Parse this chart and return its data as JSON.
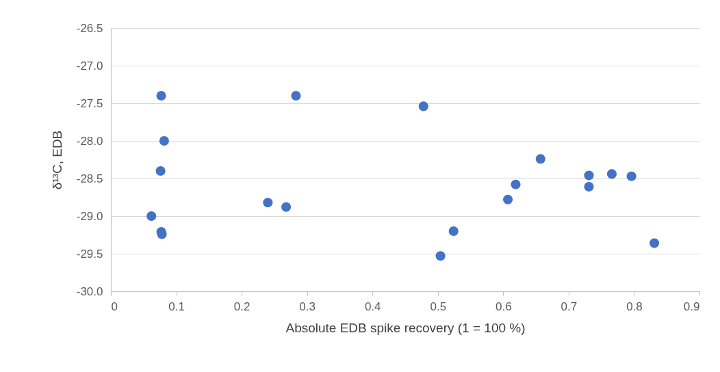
{
  "chart_data": {
    "type": "scatter",
    "xlabel": "Absolute EDB spike recovery (1 = 100 %)",
    "ylabel": "δ¹³C, EDB",
    "x": [
      0.077,
      0.283,
      0.478,
      0.0815,
      0.076,
      0.062,
      0.077,
      0.078,
      0.24,
      0.268,
      0.657,
      0.731,
      0.766,
      0.796,
      0.619,
      0.731,
      0.607,
      0.524,
      0.504,
      0.831
    ],
    "values": [
      -27.4,
      -27.4,
      -27.54,
      -28.0,
      -28.4,
      -29.0,
      -29.21,
      -29.24,
      -28.82,
      -28.88,
      -28.24,
      -28.46,
      -28.44,
      -28.47,
      -28.58,
      -28.61,
      -28.78,
      -29.2,
      -29.53,
      -29.36
    ],
    "color": "#4472c4",
    "marker": "circle",
    "grid": "y",
    "legend": false,
    "xlim": [
      0,
      0.9
    ],
    "xticks": [
      0,
      0.1,
      0.2,
      0.3,
      0.4,
      0.5,
      0.6,
      0.7,
      0.8,
      0.9
    ],
    "ylim": [
      -30,
      -26.5
    ],
    "yticks": [
      {
        "value": -30,
        "label": "-30.0"
      },
      -29.5,
      {
        "value": -29,
        "label": "-29.0"
      },
      -28.5,
      {
        "value": -28,
        "label": "-28.0"
      },
      -27.5,
      {
        "value": -27,
        "label": "-27.0"
      },
      -26.5
    ]
  }
}
